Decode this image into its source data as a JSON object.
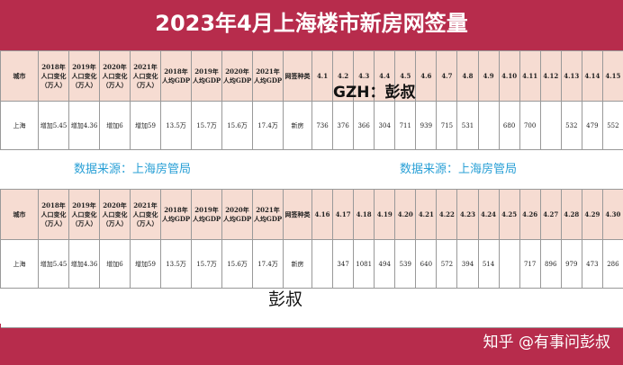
{
  "title": "2023年4月上海楼市新房网签量",
  "headers": [
    "城市",
    "2018年人口变化（万人）",
    "2019年人口变化（万人）",
    "2020年人口变化（万人）",
    "2021年人口变化（万人）",
    "2018年人均GDP",
    "2019年人均GDP",
    "2020年人均GDP",
    "2021年人均GDP",
    "网签种类"
  ],
  "row": [
    "上海",
    "增加5.45",
    "增加4.36",
    "增加6",
    "增加59",
    "13.5万",
    "15.7万",
    "15.6万",
    "17.4万",
    "新房"
  ],
  "days1": [
    "4.1",
    "4.2",
    "4.3",
    "4.4",
    "4.5",
    "4.6",
    "4.7",
    "4.8",
    "4.9",
    "4.10",
    "4.11",
    "4.12",
    "4.13",
    "4.14",
    "4.15"
  ],
  "vals1": [
    "736",
    "376",
    "366",
    "304",
    "711",
    "939",
    "715",
    "531",
    "",
    "680",
    "700",
    "",
    "532",
    "479",
    "552"
  ],
  "days2": [
    "4.16",
    "4.17",
    "4.18",
    "4.19",
    "4.20",
    "4.21",
    "4.22",
    "4.23",
    "4.24",
    "4.25",
    "4.26",
    "4.27",
    "4.28",
    "4.29",
    "4.30"
  ],
  "vals2": [
    "",
    "347",
    "1081",
    "494",
    "539",
    "640",
    "572",
    "394",
    "514",
    "",
    "717",
    "896",
    "979",
    "473",
    "286"
  ],
  "watermarks": {
    "source": "数据来源：上海房管局",
    "gzh": "GZH：彭叔",
    "name": "彭叔",
    "footer": "知乎 @有事问彭叔"
  },
  "colors": {
    "band": "#b72c4c",
    "header": "#f6dcd2",
    "watermark": "#2aa0d6"
  }
}
